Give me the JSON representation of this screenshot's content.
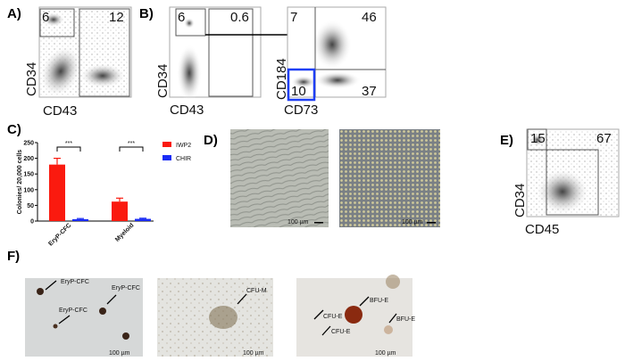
{
  "panels": {
    "A": {
      "label": "A)",
      "gates": [
        "6",
        "12"
      ],
      "x_axis": "CD43",
      "y_axis": "CD34"
    },
    "B1": {
      "label": "B)",
      "gates": [
        "6",
        "0.6"
      ],
      "x_axis": "CD43",
      "y_axis": "CD34"
    },
    "B2": {
      "quadrants": [
        "7",
        "46",
        "10",
        "37"
      ],
      "x_axis": "CD73",
      "y_axis": "CD184",
      "highlight_color": "#1f3ff5"
    },
    "D": {
      "label": "D)",
      "scale": [
        "100 µm",
        "100 µm"
      ]
    },
    "E": {
      "label": "E)",
      "gates": [
        "15",
        "67"
      ],
      "x_axis": "CD45",
      "y_axis": "CD34"
    },
    "F": {
      "label": "F)",
      "scale": [
        "100 µm",
        "100 µm",
        "100 µm"
      ],
      "img1": [
        "EryP-CFC",
        "EryP-CFC",
        "EryP-CFC"
      ],
      "img2": [
        "CFU-M"
      ],
      "img3": [
        "BFU-E",
        "CFU-E",
        "CFU-E",
        "BFU-E"
      ]
    }
  },
  "chart_data": {
    "type": "bar",
    "label": "C)",
    "categories": [
      "EryP-CFC",
      "Myeloid"
    ],
    "series": [
      {
        "name": "IWP2",
        "values": [
          180,
          62
        ],
        "errors": [
          20,
          11
        ],
        "color": "#fa1a0f"
      },
      {
        "name": "CHIR",
        "values": [
          6,
          7
        ],
        "errors": [
          2,
          2
        ],
        "color": "#1a2cf5"
      }
    ],
    "significance": [
      "***",
      "***"
    ],
    "ylabel": "Colonies/ 20,000 cells",
    "xlabel": "",
    "ylim": [
      0,
      250
    ],
    "yticks": [
      "0",
      "50",
      "100",
      "150",
      "200",
      "250"
    ],
    "legend": "right"
  }
}
